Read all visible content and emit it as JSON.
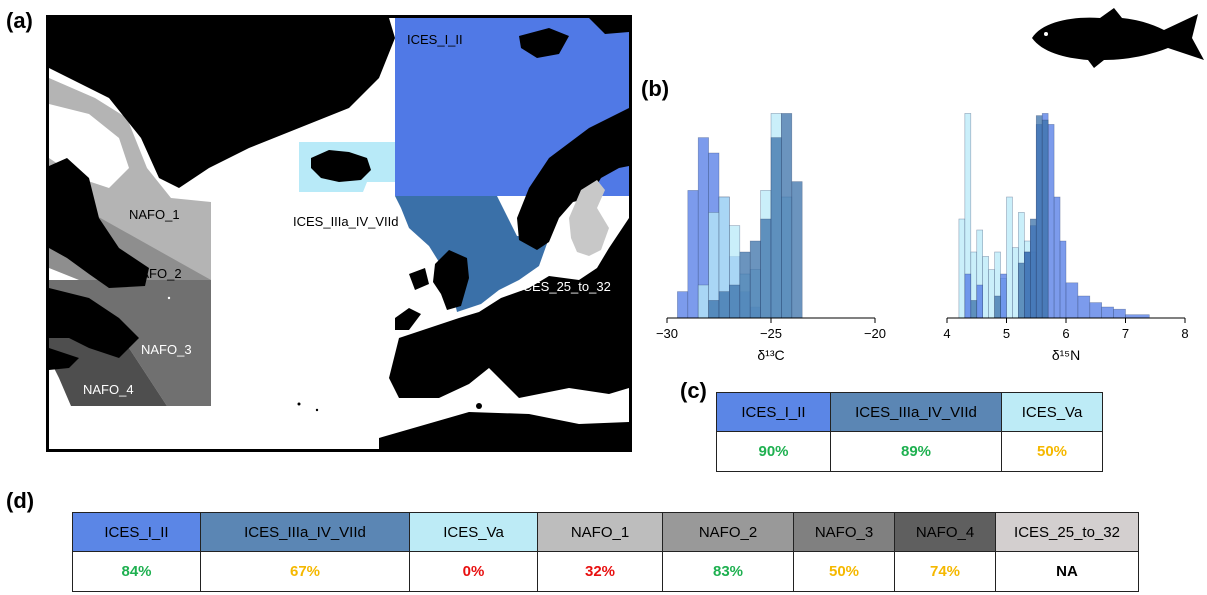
{
  "panels": {
    "a": "(a)",
    "b": "(b)",
    "c": "(c)",
    "d": "(d)"
  },
  "map": {
    "regions": {
      "ices_i_ii": {
        "label": "ICES_I_II",
        "color": "#5079E6"
      },
      "ices_va": {
        "label": "ICES_Va",
        "color": "#B8EAF8"
      },
      "ices_iiia": {
        "label": "ICES_IIIa_IV_VIId",
        "color": "#3A70A8"
      },
      "ices_25_32": {
        "label": "ICES_25_to_32",
        "color": "#C8C8C8"
      },
      "nafo_1": {
        "label": "NAFO_1",
        "color": "#B4B4B4"
      },
      "nafo_2": {
        "label": "NAFO_2",
        "color": "#8E8E8E"
      },
      "nafo_3": {
        "label": "NAFO_3",
        "color": "#707070"
      },
      "nafo_4": {
        "label": "NAFO_4",
        "color": "#4E4E4E"
      }
    }
  },
  "chart_data": [
    {
      "type": "histogram",
      "xlabel": "δ¹³C",
      "xlim": [
        -30,
        -20
      ],
      "xticks": [
        -30,
        -25,
        -20
      ],
      "series": [
        {
          "color": "#5079E6",
          "bins": [
            [
              -29.5,
              -29.0,
              0.12
            ],
            [
              -29.0,
              -28.5,
              0.58
            ],
            [
              -28.5,
              -28.0,
              0.82
            ],
            [
              -28.0,
              -27.5,
              0.75
            ],
            [
              -27.5,
              -27.0,
              0.55
            ],
            [
              -27.0,
              -26.5,
              0.28
            ],
            [
              -26.5,
              -26.0,
              0.12
            ],
            [
              -26.0,
              -25.5,
              0.05
            ]
          ]
        },
        {
          "color": "#B8EAF8",
          "bins": [
            [
              -28.5,
              -28.0,
              0.15
            ],
            [
              -28.0,
              -27.5,
              0.48
            ],
            [
              -27.5,
              -27.0,
              0.55
            ],
            [
              -27.0,
              -26.5,
              0.42
            ],
            [
              -26.5,
              -26.0,
              0.2
            ],
            [
              -26.0,
              -25.5,
              0.22
            ],
            [
              -25.5,
              -25.0,
              0.58
            ],
            [
              -25.0,
              -24.5,
              0.93
            ],
            [
              -24.5,
              -24.0,
              0.55
            ]
          ]
        },
        {
          "color": "#3A70A8",
          "bins": [
            [
              -28.0,
              -27.5,
              0.08
            ],
            [
              -27.5,
              -27.0,
              0.12
            ],
            [
              -27.0,
              -26.5,
              0.15
            ],
            [
              -26.5,
              -26.0,
              0.3
            ],
            [
              -26.0,
              -25.5,
              0.35
            ],
            [
              -25.5,
              -25.0,
              0.45
            ],
            [
              -25.0,
              -24.5,
              0.82
            ],
            [
              -24.5,
              -24.0,
              0.93
            ],
            [
              -24.0,
              -23.5,
              0.62
            ]
          ]
        }
      ]
    },
    {
      "type": "histogram",
      "xlabel": "δ¹⁵N",
      "xlim": [
        4,
        8
      ],
      "xticks": [
        4,
        5,
        6,
        7,
        8
      ],
      "series": [
        {
          "color": "#B8EAF8",
          "bins": [
            [
              4.2,
              4.3,
              0.45
            ],
            [
              4.3,
              4.4,
              0.93
            ],
            [
              4.4,
              4.5,
              0.3
            ],
            [
              4.5,
              4.6,
              0.4
            ],
            [
              4.6,
              4.7,
              0.28
            ],
            [
              4.7,
              4.8,
              0.22
            ],
            [
              4.8,
              4.9,
              0.3
            ],
            [
              4.9,
              5.0,
              0.18
            ],
            [
              5.0,
              5.1,
              0.55
            ],
            [
              5.1,
              5.2,
              0.32
            ],
            [
              5.2,
              5.3,
              0.48
            ],
            [
              5.3,
              5.4,
              0.35
            ],
            [
              5.4,
              5.5,
              0.3
            ]
          ]
        },
        {
          "color": "#5079E6",
          "bins": [
            [
              4.3,
              4.4,
              0.2
            ],
            [
              4.5,
              4.6,
              0.15
            ],
            [
              4.9,
              5.0,
              0.2
            ],
            [
              5.3,
              5.4,
              0.3
            ],
            [
              5.4,
              5.5,
              0.42
            ],
            [
              5.5,
              5.6,
              0.88
            ],
            [
              5.6,
              5.7,
              0.93
            ],
            [
              5.7,
              5.8,
              0.88
            ],
            [
              5.8,
              5.9,
              0.55
            ],
            [
              5.9,
              6.0,
              0.35
            ],
            [
              6.0,
              6.2,
              0.16
            ],
            [
              6.2,
              6.4,
              0.1
            ],
            [
              6.4,
              6.6,
              0.07
            ],
            [
              6.6,
              6.8,
              0.05
            ],
            [
              6.8,
              7.0,
              0.04
            ],
            [
              7.0,
              7.4,
              0.015
            ]
          ]
        },
        {
          "color": "#3A70A8",
          "bins": [
            [
              4.4,
              4.5,
              0.08
            ],
            [
              4.8,
              4.9,
              0.1
            ],
            [
              5.2,
              5.3,
              0.25
            ],
            [
              5.3,
              5.4,
              0.3
            ],
            [
              5.4,
              5.5,
              0.45
            ],
            [
              5.5,
              5.6,
              0.92
            ],
            [
              5.6,
              5.7,
              0.9
            ]
          ]
        }
      ]
    }
  ],
  "table_c": {
    "headers": [
      {
        "label": "ICES_I_II",
        "bg": "#5B86E6"
      },
      {
        "label": "ICES_IIIa_IV_VIId",
        "bg": "#5B86B4"
      },
      {
        "label": "ICES_Va",
        "bg": "#BDEBF6"
      }
    ],
    "values": [
      {
        "text": "90%",
        "color": "#1EB050"
      },
      {
        "text": "89%",
        "color": "#1EB050"
      },
      {
        "text": "50%",
        "color": "#F5B800"
      }
    ]
  },
  "table_d": {
    "headers": [
      {
        "label": "ICES_I_II",
        "bg": "#5B86E6"
      },
      {
        "label": "ICES_IIIa_IV_VIId",
        "bg": "#5B86B4"
      },
      {
        "label": "ICES_Va",
        "bg": "#BDEBF6"
      },
      {
        "label": "NAFO_1",
        "bg": "#BDBDBD"
      },
      {
        "label": "NAFO_2",
        "bg": "#999999"
      },
      {
        "label": "NAFO_3",
        "bg": "#808080"
      },
      {
        "label": "NAFO_4",
        "bg": "#5F5F5F"
      },
      {
        "label": "ICES_25_to_32",
        "bg": "#D3CFCF"
      }
    ],
    "values": [
      {
        "text": "84%",
        "color": "#1EB050"
      },
      {
        "text": "67%",
        "color": "#F5B800"
      },
      {
        "text": "0%",
        "color": "#E81010"
      },
      {
        "text": "32%",
        "color": "#E81010"
      },
      {
        "text": "83%",
        "color": "#1EB050"
      },
      {
        "text": "50%",
        "color": "#F5B800"
      },
      {
        "text": "74%",
        "color": "#F5B800"
      },
      {
        "text": "NA",
        "color": "#000000"
      }
    ]
  }
}
